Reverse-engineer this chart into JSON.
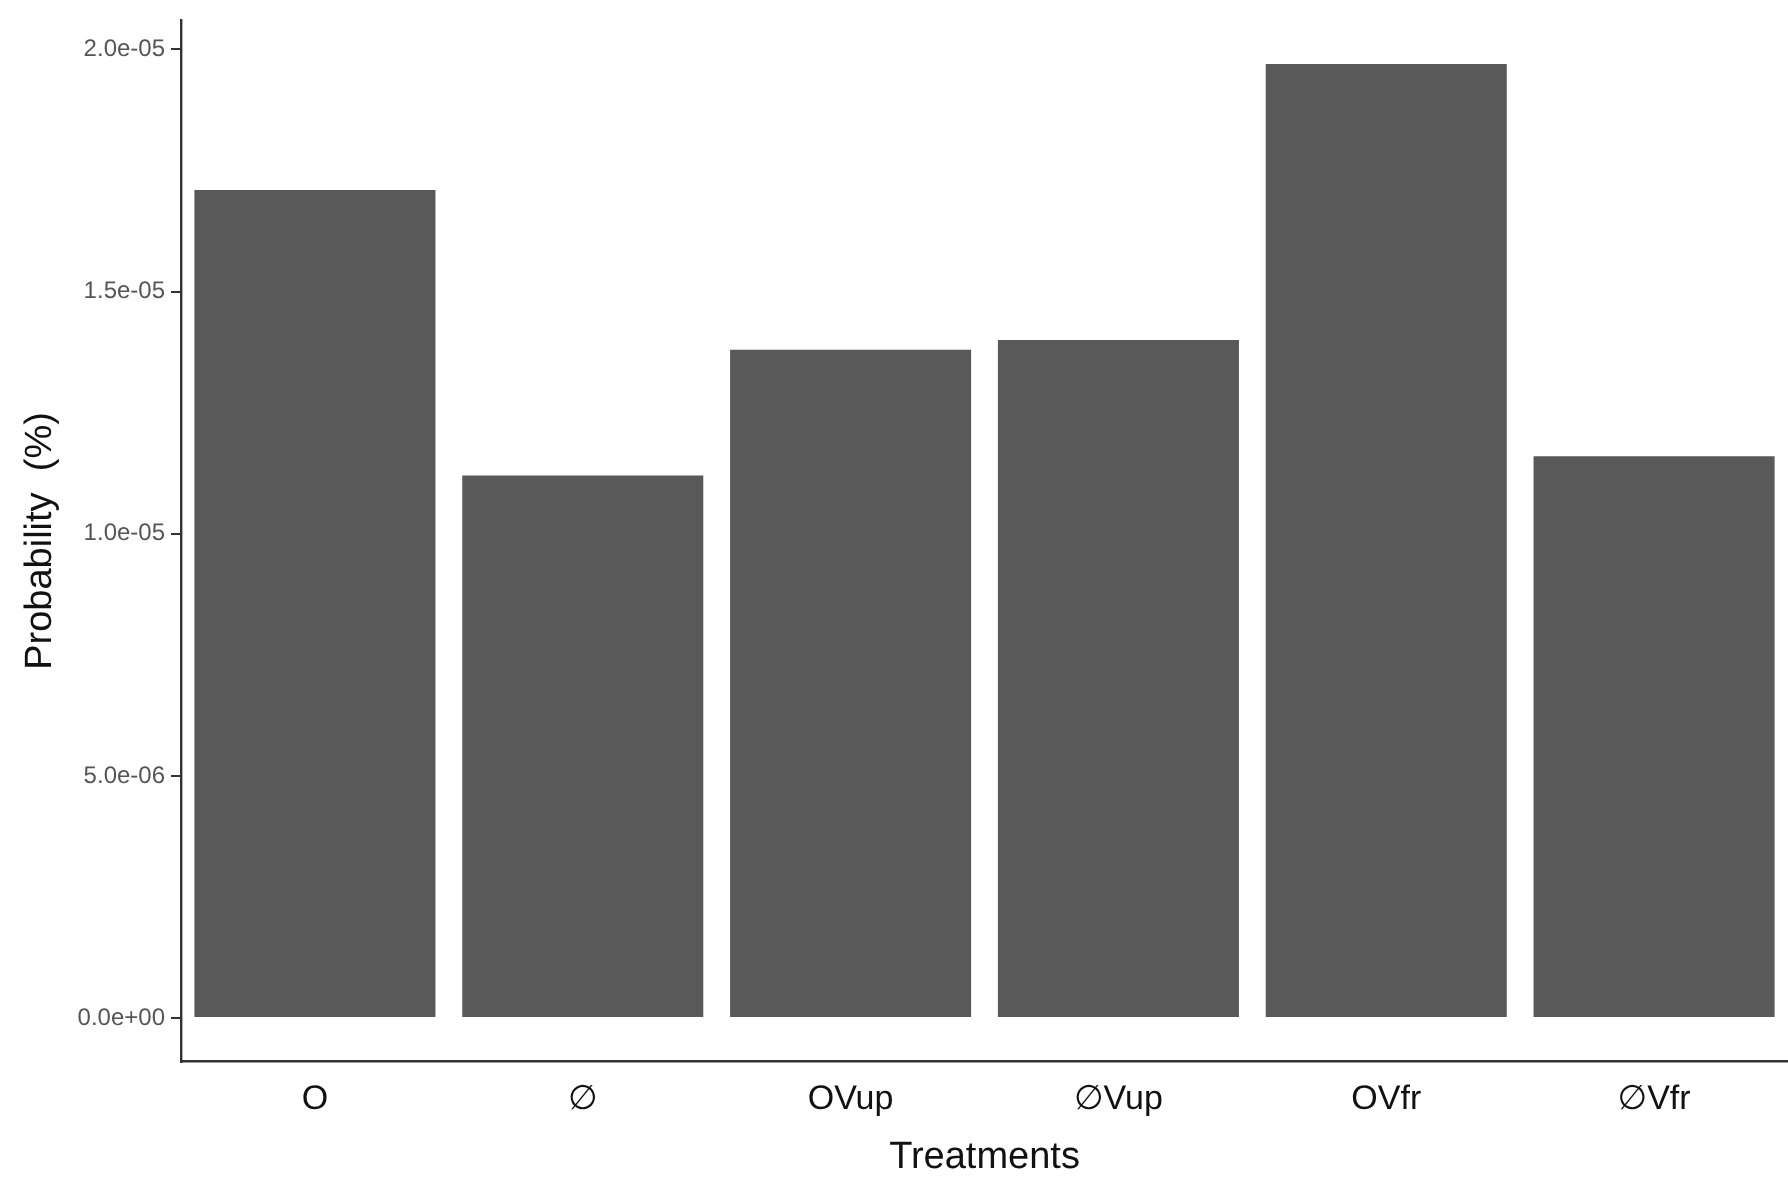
{
  "chart_data": {
    "type": "bar",
    "xlabel": "Treatments",
    "ylabel": "Probability  (%)",
    "categories": [
      "O",
      "∅",
      "OVup",
      "∅Vup",
      "OVfr",
      "∅Vfr"
    ],
    "values": [
      1.71e-05,
      1.12e-05,
      1.38e-05,
      1.4e-05,
      1.97e-05,
      1.16e-05
    ],
    "color": "#595959",
    "ylim": [
      -9e-07,
      2.06e-05
    ],
    "yticks": [
      {
        "value": 0,
        "label": "0.0e+00"
      },
      {
        "value": 5e-06,
        "label": "5.0e-06"
      },
      {
        "value": 1e-05,
        "label": "1.0e-05"
      },
      {
        "value": 1.5e-05,
        "label": "1.5e-05"
      },
      {
        "value": 2e-05,
        "label": "2.0e-05"
      }
    ],
    "grid": false,
    "legend": false
  }
}
